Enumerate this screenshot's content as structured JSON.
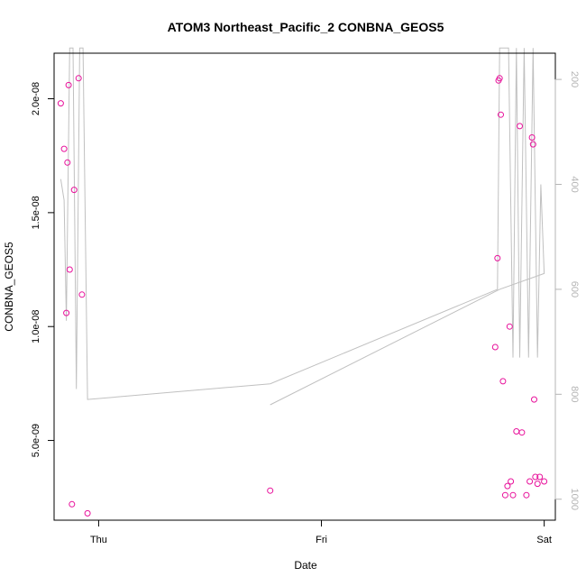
{
  "chart_data": {
    "type": "scatter",
    "title": "ATOM3 Northeast_Pacific_2 CONBNA_GEOS5",
    "xlabel": "Date",
    "ylabel": "CONBNA_GEOS5",
    "x_tick_labels": [
      "Thu",
      "Fri",
      "Sat"
    ],
    "y_tick_labels": [
      "5.0e-09",
      "1.0e-08",
      "1.5e-08",
      "2.0e-08"
    ],
    "y_ticks": [
      5e-09,
      1e-08,
      1.5e-08,
      2e-08
    ],
    "y2_tick_labels": [
      "200",
      "400",
      "600",
      "800",
      "1000"
    ],
    "y2_ticks": [
      200,
      400,
      600,
      800,
      1000
    ],
    "y2_reversed": true,
    "xlim_days": [
      -0.2,
      2.05
    ],
    "ylim": [
      1.5e-09,
      2.2e-08
    ],
    "y2lim": [
      1040,
      150
    ],
    "grid": false,
    "colors": {
      "points": "#e8119b",
      "pressure_line": "#c0c0c0",
      "axis_right": "#b5b5b5"
    },
    "series": [
      {
        "role": "concentration_points",
        "x_days": [
          -0.17,
          -0.155,
          -0.145,
          -0.14,
          -0.135,
          -0.13,
          -0.12,
          -0.11,
          -0.09,
          -0.075,
          -0.05,
          0.77,
          1.78,
          1.79,
          1.795,
          1.8,
          1.805,
          1.815,
          1.825,
          1.835,
          1.845,
          1.85,
          1.86,
          1.875,
          1.89,
          1.9,
          1.92,
          1.935,
          1.945,
          1.95,
          1.955,
          1.96,
          1.97,
          1.98,
          2.0
        ],
        "y": [
          1.98e-08,
          1.78e-08,
          1.06e-08,
          1.72e-08,
          2.06e-08,
          1.25e-08,
          2.2e-09,
          1.6e-08,
          2.09e-08,
          1.14e-08,
          1.8e-09,
          2.8e-09,
          9.1e-09,
          1.3e-08,
          2.08e-08,
          2.09e-08,
          1.93e-08,
          7.6e-09,
          2.6e-09,
          3e-09,
          1e-08,
          3.2e-09,
          2.6e-09,
          5.4e-09,
          1.88e-08,
          5.35e-09,
          2.6e-09,
          3.2e-09,
          1.83e-08,
          1.8e-08,
          6.8e-09,
          3.4e-09,
          3.1e-09,
          3.4e-09,
          3.2e-09
        ]
      },
      {
        "role": "pressure_line",
        "axis": "right",
        "x_days": [
          -0.17,
          -0.155,
          -0.145,
          -0.13,
          -0.115,
          -0.1,
          -0.085,
          -0.07,
          -0.05,
          0.77,
          1.79,
          1.8,
          1.82,
          1.84,
          1.86,
          1.875,
          1.89,
          1.91,
          1.93,
          1.95,
          1.97,
          1.985,
          2.0,
          1.8,
          0.77
        ],
        "y": [
          390,
          430,
          660,
          140,
          140,
          790,
          140,
          140,
          810,
          780,
          600,
          140,
          140,
          140,
          730,
          140,
          730,
          140,
          730,
          140,
          730,
          400,
          570,
          600,
          820
        ]
      }
    ]
  }
}
